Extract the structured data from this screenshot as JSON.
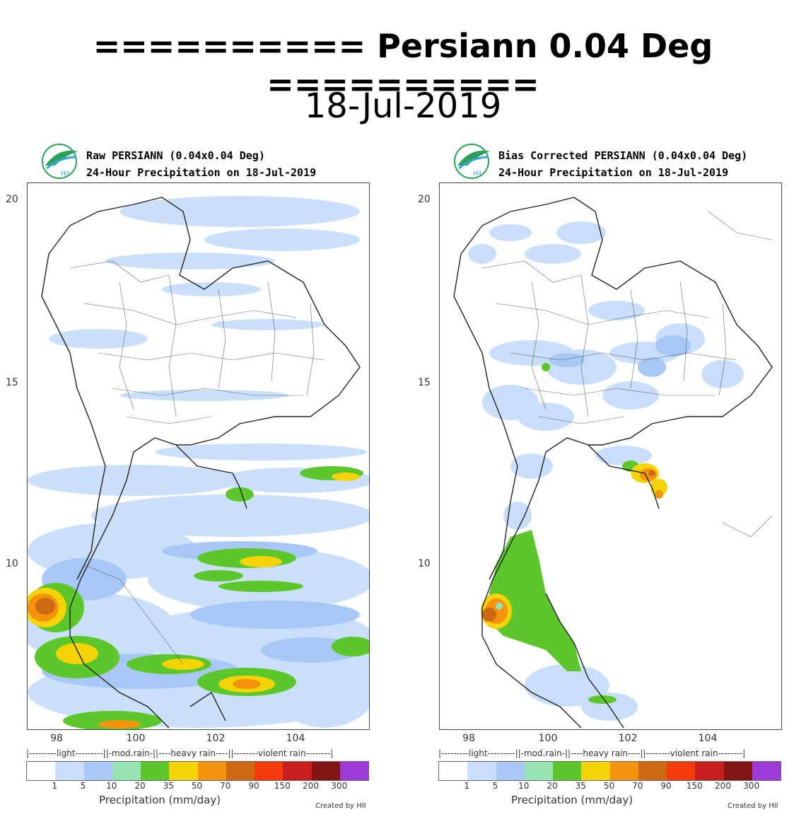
{
  "header": {
    "title": "========== Persiann 0.04 Deg ==========",
    "date": "18-Jul-2019"
  },
  "panels": [
    {
      "title_line1": "Raw PERSIANN (0.04x0.04 Deg)",
      "title_line2": "24-Hour Precipitation on 18-Jul-2019",
      "logo_text": "HII",
      "credit": "Created by HII"
    },
    {
      "title_line1": "Bias Corrected PERSIANN (0.04x0.04 Deg)",
      "title_line2": "24-Hour Precipitation on 18-Jul-2019",
      "logo_text": "HII",
      "credit": "Created by HII"
    }
  ],
  "axes": {
    "lat_ticks": [
      "20",
      "15",
      "10"
    ],
    "lon_ticks": [
      "98",
      "100",
      "102",
      "104"
    ]
  },
  "legend": {
    "categories": "|---------light---------||-mod.rain-||----heavy rain----||--------violent rain--------|",
    "ticks": [
      "1",
      "5",
      "10",
      "20",
      "35",
      "50",
      "70",
      "90",
      "150",
      "200",
      "300"
    ],
    "label": "Precipitation (mm/day)",
    "colors": [
      "#ffffff",
      "#c8defa",
      "#a7c8f4",
      "#98e3b4",
      "#5cc72b",
      "#f5d309",
      "#f5940c",
      "#cc6a14",
      "#f53a0c",
      "#c81e1e",
      "#821414",
      "#9b3bd6"
    ]
  }
}
